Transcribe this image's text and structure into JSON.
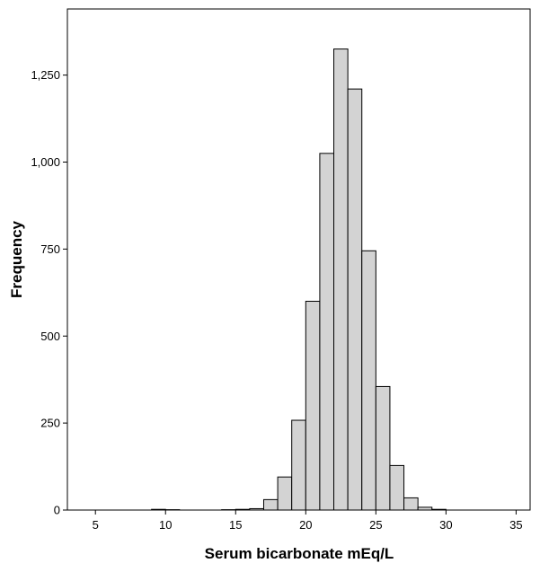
{
  "chart_data": {
    "type": "bar",
    "subtype": "histogram",
    "xlabel": "Serum bicarbonate mEq/L",
    "ylabel": "Frequency",
    "xlim": [
      3,
      36
    ],
    "ylim": [
      0,
      1440
    ],
    "x_ticks": [
      5,
      10,
      15,
      20,
      25,
      30,
      35
    ],
    "x_tick_labels": [
      "5",
      "10",
      "15",
      "20",
      "25",
      "30",
      "35"
    ],
    "y_ticks": [
      0,
      250,
      500,
      750,
      1000,
      1250
    ],
    "y_tick_labels": [
      "0",
      "250",
      "500",
      "750",
      "1,000",
      "1,250"
    ],
    "bin_width": 1,
    "bins": [
      {
        "x0": 9,
        "x1": 10,
        "value": 2
      },
      {
        "x0": 10,
        "x1": 11,
        "value": 1
      },
      {
        "x0": 14,
        "x1": 15,
        "value": 1
      },
      {
        "x0": 15,
        "x1": 16,
        "value": 2
      },
      {
        "x0": 16,
        "x1": 17,
        "value": 4
      },
      {
        "x0": 17,
        "x1": 18,
        "value": 30
      },
      {
        "x0": 18,
        "x1": 19,
        "value": 95
      },
      {
        "x0": 19,
        "x1": 20,
        "value": 258
      },
      {
        "x0": 20,
        "x1": 21,
        "value": 600
      },
      {
        "x0": 21,
        "x1": 22,
        "value": 1025
      },
      {
        "x0": 22,
        "x1": 23,
        "value": 1325
      },
      {
        "x0": 23,
        "x1": 24,
        "value": 1210
      },
      {
        "x0": 24,
        "x1": 25,
        "value": 745
      },
      {
        "x0": 25,
        "x1": 26,
        "value": 355
      },
      {
        "x0": 26,
        "x1": 27,
        "value": 128
      },
      {
        "x0": 27,
        "x1": 28,
        "value": 35
      },
      {
        "x0": 28,
        "x1": 29,
        "value": 8
      },
      {
        "x0": 29,
        "x1": 30,
        "value": 2
      }
    ],
    "grid": false,
    "bar_color": "#d3d3d3",
    "edge_color": "#000000"
  }
}
